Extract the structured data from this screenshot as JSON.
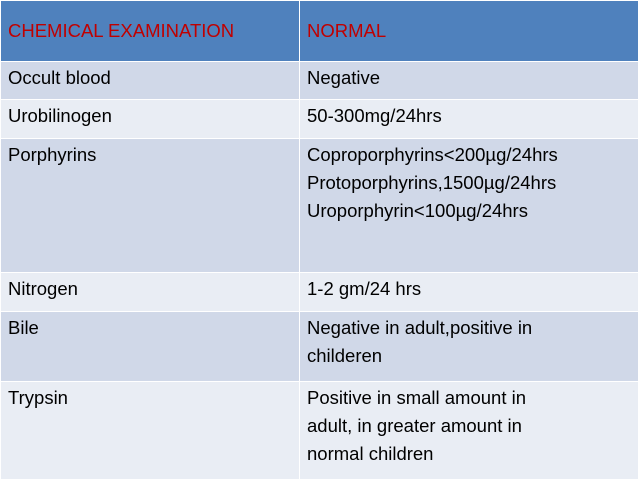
{
  "table": {
    "header": [
      "CHEMICAL EXAMINATION",
      "NORMAL"
    ],
    "rows": [
      [
        "Occult blood",
        [
          "Negative"
        ]
      ],
      [
        "Urobilinogen",
        [
          "50-300mg/24hrs"
        ]
      ],
      [
        "Porphyrins",
        [
          "Coproporphyrins<200µg/24hrs",
          "Protoporphyrins,1500µg/24hrs",
          "Uroporphyrin<100µg/24hrs"
        ]
      ],
      [
        "Nitrogen",
        [
          "1-2 gm/24 hrs"
        ]
      ],
      [
        "Bile",
        [
          "Negative in adult,positive in",
          "childeren"
        ]
      ],
      [
        "Trypsin",
        [
          "Positive in small amount in",
          "adult, in greater amount in",
          "normal children"
        ]
      ]
    ]
  }
}
